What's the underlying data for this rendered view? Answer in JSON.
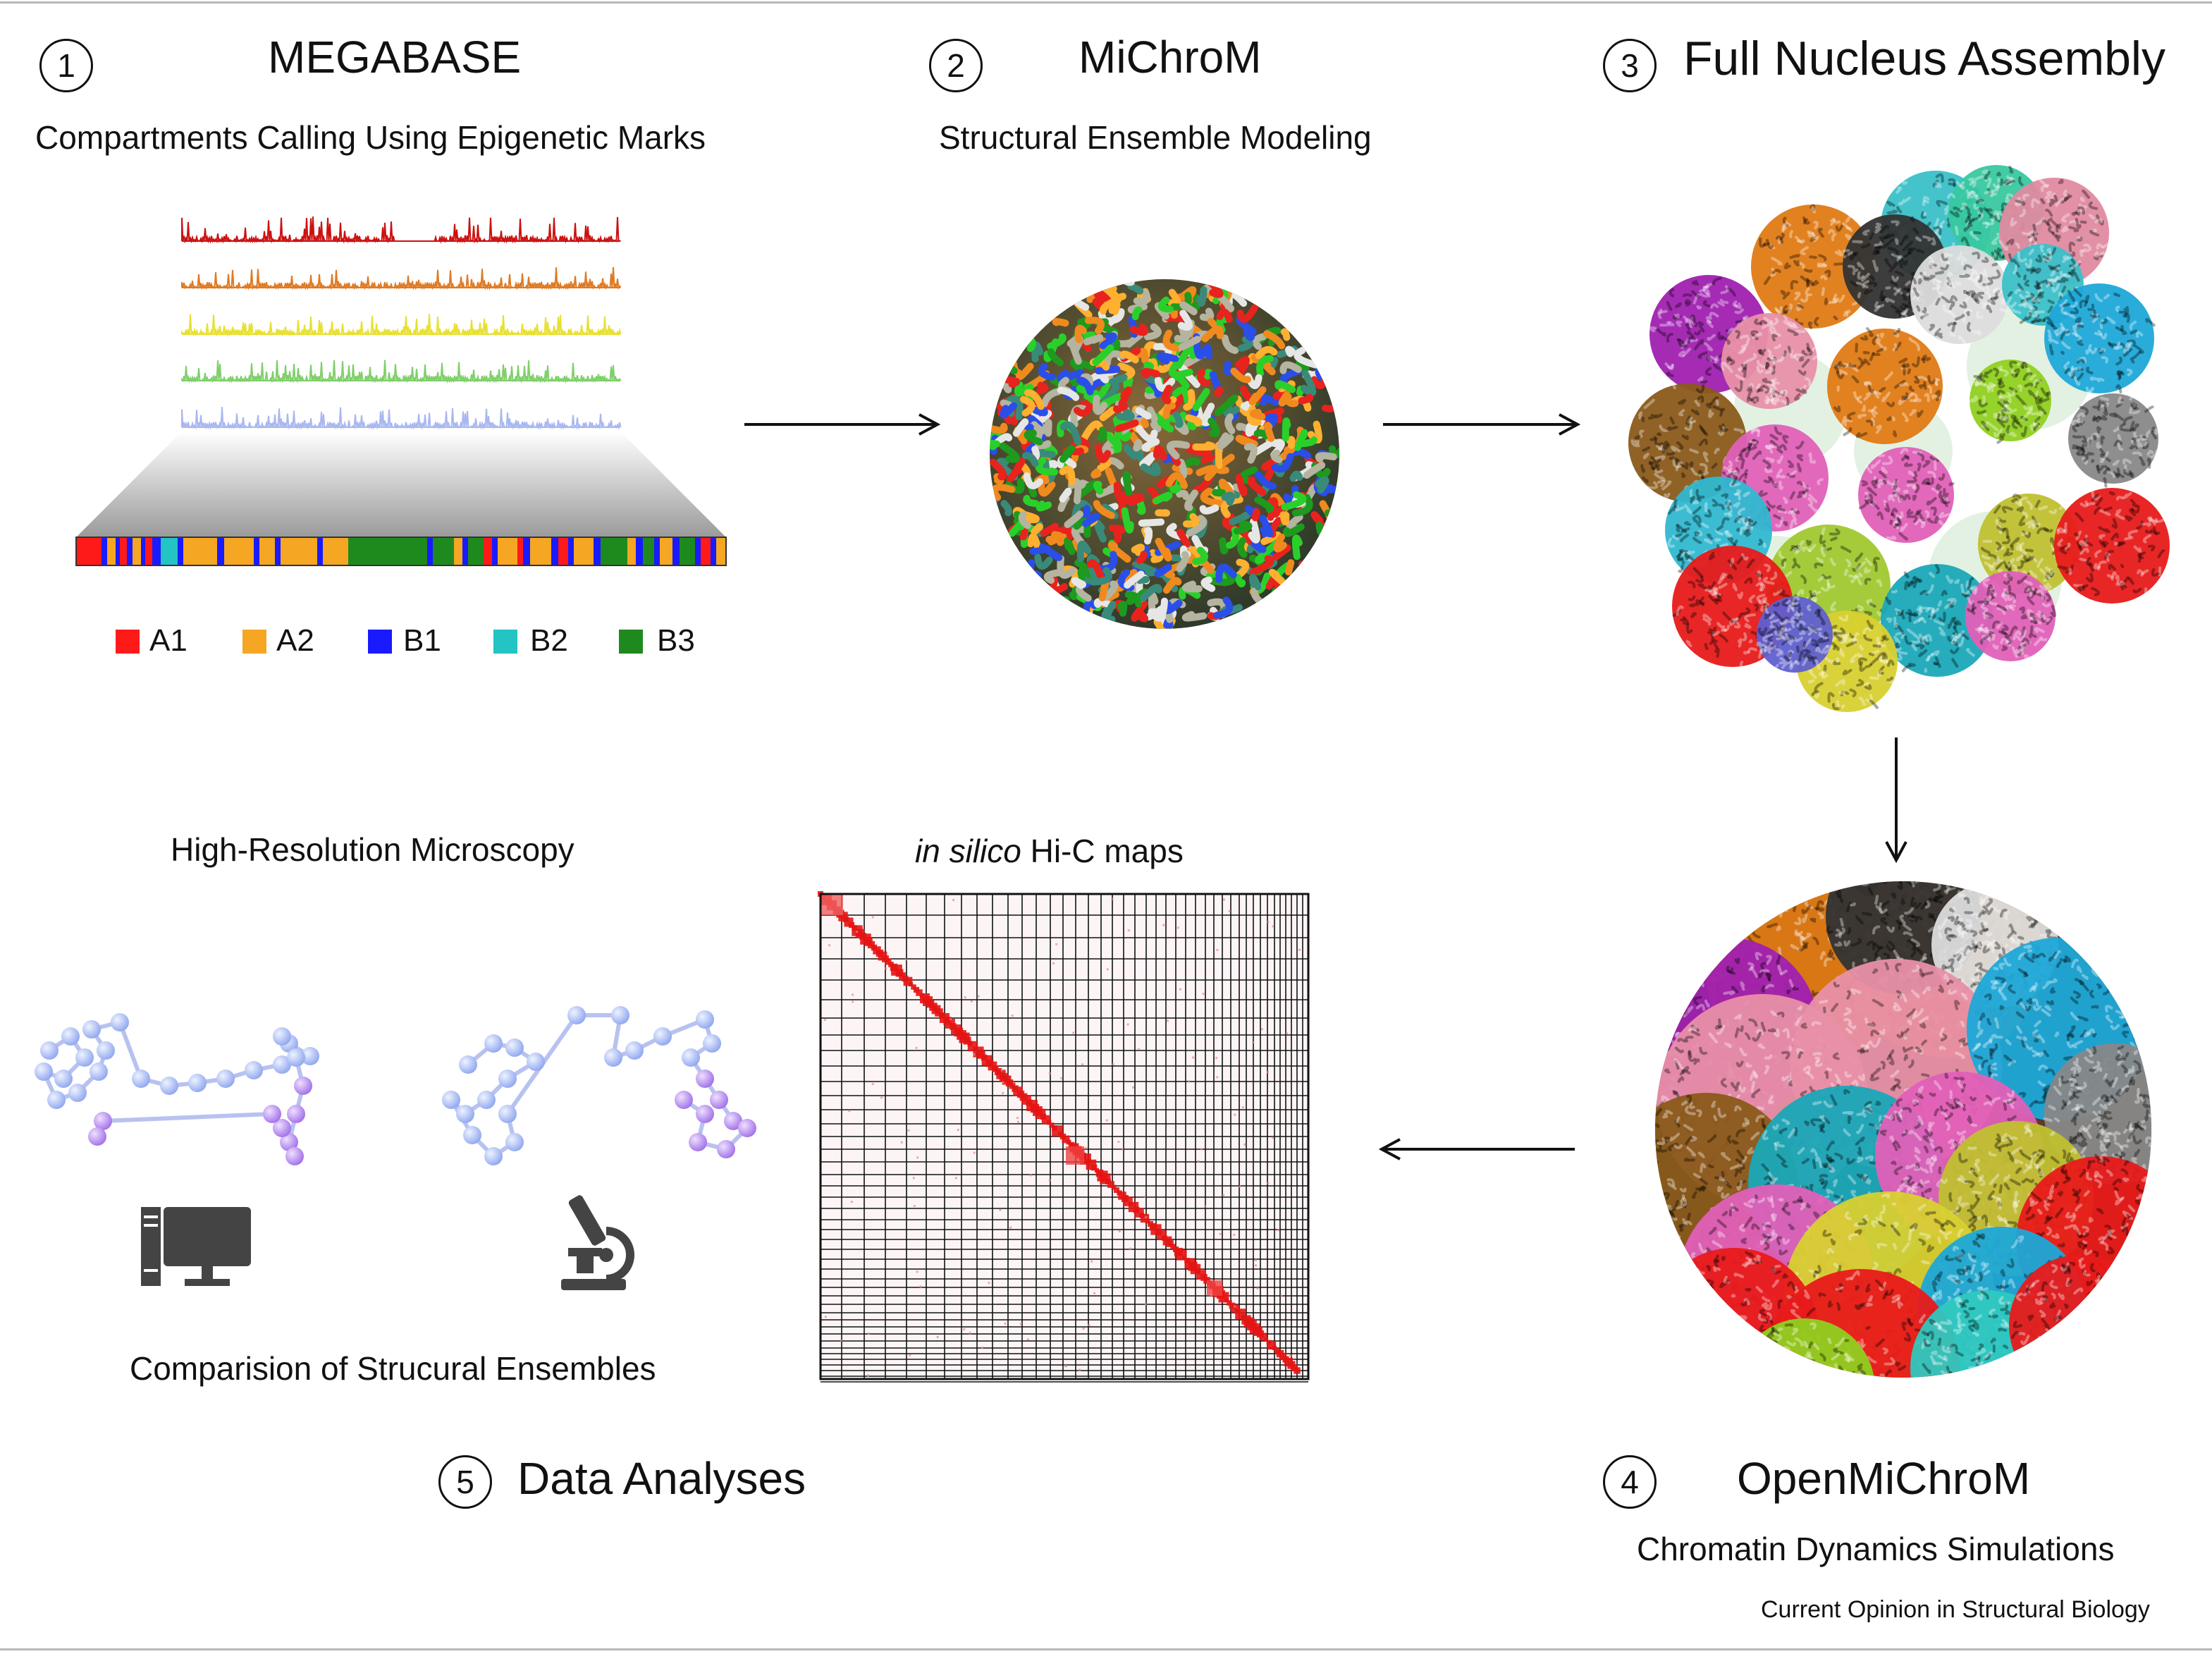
{
  "panels": {
    "p1": {
      "number": "1",
      "title": "MEGABASE",
      "subtitle": "Compartments Calling Using Epigenetic Marks"
    },
    "p2": {
      "number": "2",
      "title": "MiChroM",
      "subtitle": "Structural Ensemble Modeling"
    },
    "p3": {
      "number": "3",
      "title": "Full Nucleus Assembly"
    },
    "p4": {
      "number": "4",
      "title": "OpenMiChroM",
      "subtitle": "Chromatin Dynamics Simulations"
    },
    "p5": {
      "number": "5",
      "title": "Data Analyses",
      "microscopy": "High-Resolution Microscopy",
      "comparison": "Comparision of Strucural Ensembles",
      "hic_italic": "in silico",
      "hic_rest": " Hi-C maps"
    }
  },
  "legend": [
    {
      "label": "A1",
      "color": "#ff1a1a"
    },
    {
      "label": "A2",
      "color": "#f5a623"
    },
    {
      "label": "B1",
      "color": "#1a1aff"
    },
    {
      "label": "B2",
      "color": "#22c4c4"
    },
    {
      "label": "B3",
      "color": "#1e8a1e"
    }
  ],
  "tracks": [
    "#cc1111",
    "#e07a22",
    "#e8e030",
    "#7fcf6a",
    "#a9b8f0"
  ],
  "icons": [
    "computer-icon",
    "microscope-icon"
  ],
  "journal": "Current Opinion in Structural Biology"
}
